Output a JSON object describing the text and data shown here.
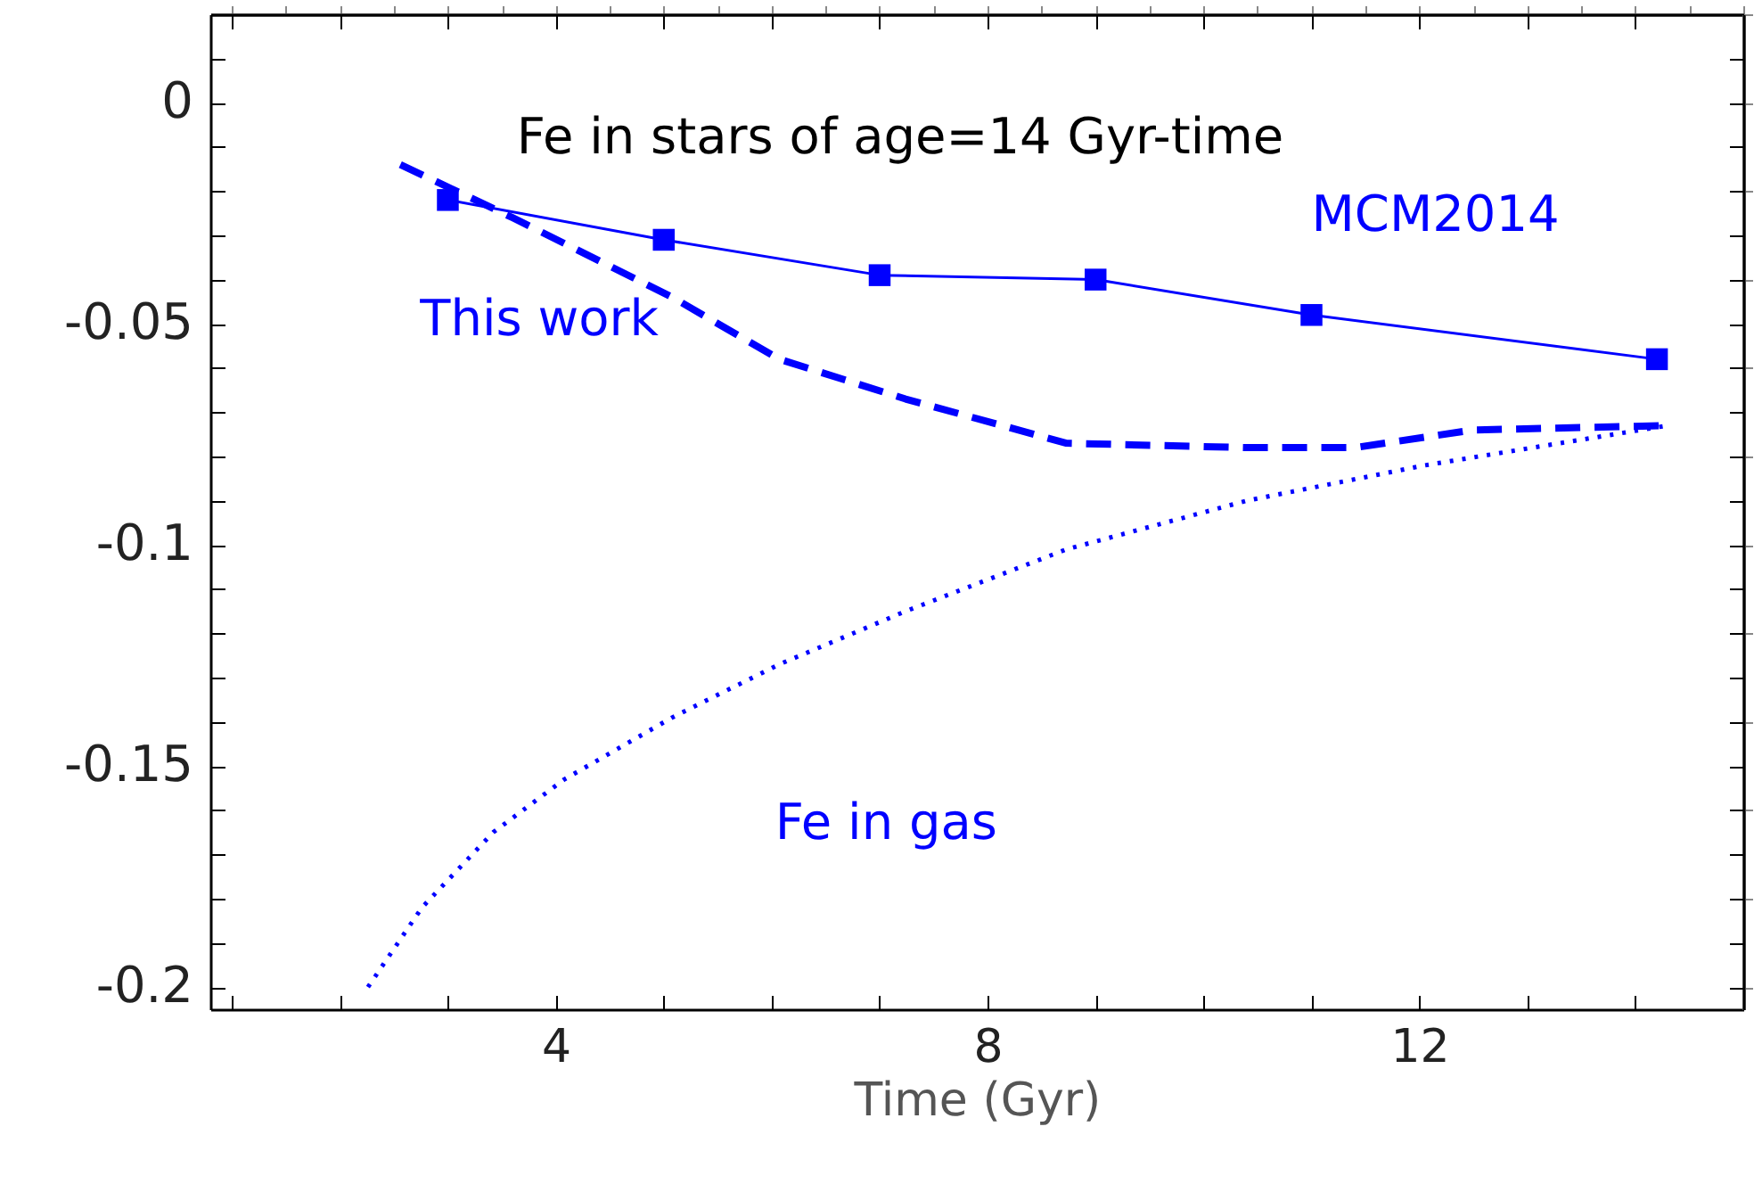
{
  "chart_data": {
    "type": "line",
    "title": "Fe in stars of age=14 Gyr-time",
    "xlabel": "Time (Gyr)",
    "xlim": [
      0.8,
      15
    ],
    "ylim": [
      -0.205,
      0.02
    ],
    "xticks": [
      {
        "value": 1,
        "label": null
      },
      {
        "value": 2,
        "label": null
      },
      {
        "value": 3,
        "label": null
      },
      4,
      {
        "value": 5,
        "label": null
      },
      {
        "value": 6,
        "label": null
      },
      {
        "value": 7,
        "label": null
      },
      8,
      {
        "value": 9,
        "label": null
      },
      {
        "value": 10,
        "label": null
      },
      {
        "value": 11,
        "label": null
      },
      12,
      {
        "value": 13,
        "label": null
      },
      {
        "value": 14,
        "label": null
      }
    ],
    "yticks": [
      -0.2,
      {
        "value": -0.19,
        "label": null
      },
      {
        "value": -0.18,
        "label": null
      },
      {
        "value": -0.17,
        "label": null
      },
      {
        "value": -0.16,
        "label": null
      },
      -0.15,
      {
        "value": -0.14,
        "label": null
      },
      {
        "value": -0.13,
        "label": null
      },
      {
        "value": -0.12,
        "label": null
      },
      {
        "value": -0.11,
        "label": null
      },
      -0.1,
      {
        "value": -0.09,
        "label": null
      },
      {
        "value": -0.08,
        "label": null
      },
      {
        "value": -0.07,
        "label": null
      },
      {
        "value": -0.06,
        "label": null
      },
      -0.05,
      {
        "value": -0.04,
        "label": null
      },
      {
        "value": -0.03,
        "label": null
      },
      {
        "value": -0.02,
        "label": null
      },
      {
        "value": -0.01,
        "label": null
      },
      0,
      {
        "value": 0.01,
        "label": null
      }
    ],
    "grid": false,
    "series": [
      {
        "name": "MCM2014",
        "color": "#0000ff",
        "line_style": "solid",
        "marker": "square",
        "x": [
          3,
          5,
          7,
          9,
          11,
          14.2
        ],
        "values": [
          -0.022,
          -0.031,
          -0.039,
          -0.04,
          -0.048,
          -0.058
        ]
      },
      {
        "name": "This work",
        "color": "#0000ff",
        "line_style": "dashed",
        "marker": "none",
        "x": [
          2.56,
          3.6,
          5.08,
          6.07,
          7.24,
          8.73,
          10.4,
          11.4,
          12.5,
          14.3
        ],
        "values": [
          -0.014,
          -0.026,
          -0.044,
          -0.058,
          -0.067,
          -0.077,
          -0.078,
          -0.078,
          -0.074,
          -0.073
        ]
      },
      {
        "name": "Fe in gas",
        "color": "#0000ff",
        "line_style": "dotted",
        "marker": "none",
        "x": [
          2.26,
          2.76,
          3.42,
          4.08,
          5.08,
          6.07,
          7.24,
          8.73,
          10.4,
          12.05,
          14.3
        ],
        "values": [
          -0.2,
          -0.182,
          -0.165,
          -0.153,
          -0.139,
          -0.127,
          -0.115,
          -0.101,
          -0.09,
          -0.082,
          -0.073
        ]
      }
    ]
  }
}
